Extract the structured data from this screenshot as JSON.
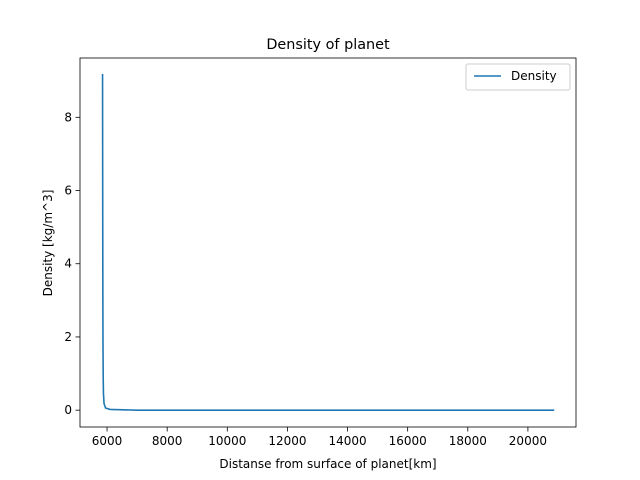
{
  "chart_data": {
    "type": "line",
    "title": "Density of planet",
    "xlabel": "Distanse from surface of planet[km]",
    "ylabel": "Density [kg/m^3]",
    "xlim": [
      5100,
      21600
    ],
    "ylim": [
      -0.46,
      9.62
    ],
    "xticks": [
      6000,
      8000,
      10000,
      12000,
      14000,
      16000,
      18000,
      20000
    ],
    "yticks": [
      0,
      2,
      4,
      6,
      8
    ],
    "grid": false,
    "legend_position": "top-right",
    "color": "#1f77b4",
    "series": [
      {
        "name": "Density",
        "x": [
          5850,
          5853,
          5856,
          5859,
          5862,
          5866,
          5872,
          5880,
          5900,
          5950,
          6100,
          7000,
          10000,
          15000,
          20850
        ],
        "y": [
          9.16,
          7.0,
          5.2,
          3.7,
          2.5,
          1.6,
          0.9,
          0.45,
          0.18,
          0.06,
          0.02,
          0.0,
          0.0,
          0.0,
          0.0
        ]
      }
    ]
  }
}
